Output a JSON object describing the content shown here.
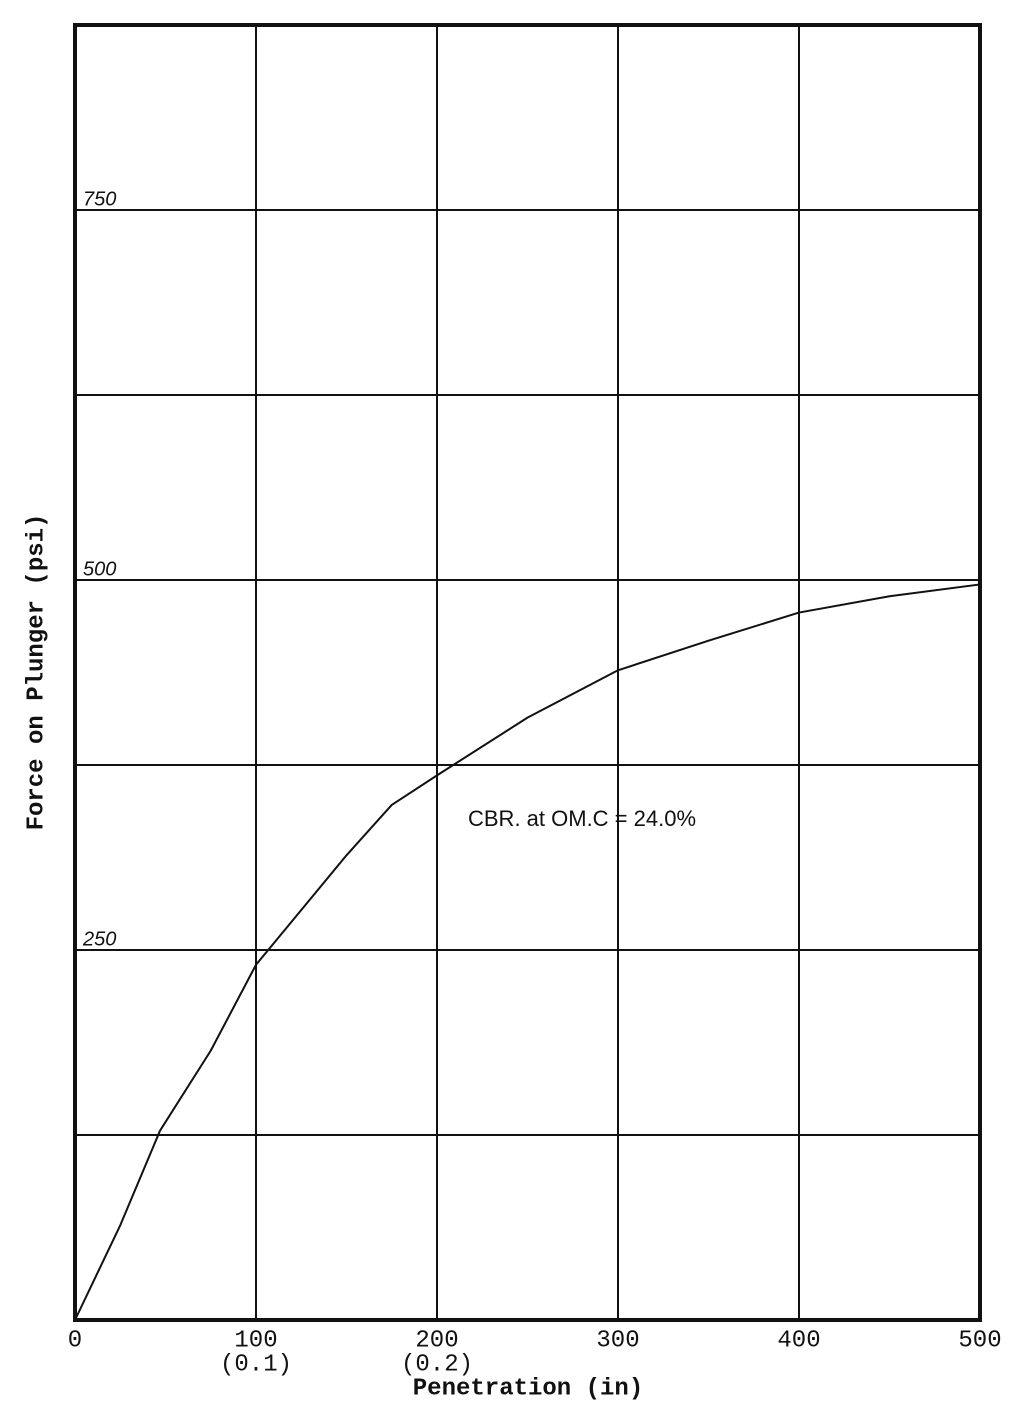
{
  "chart_data": {
    "type": "line",
    "x_label": "Penetration (in)",
    "y_label": "Force on Plunger (psi)",
    "annotation": "CBR. at OM.C = 24.0%",
    "x": [
      0,
      25,
      47,
      75,
      100,
      150,
      175,
      200,
      250,
      300,
      350,
      400,
      450,
      500
    ],
    "values": [
      0,
      64,
      128,
      182,
      240,
      314,
      348,
      368,
      407,
      439,
      459,
      478,
      489,
      497
    ],
    "color": "#111111",
    "xlim": [
      0,
      500
    ],
    "xticks": [
      0,
      {
        "value": 100,
        "label": "100",
        "sublabel": "(0.1)"
      },
      {
        "value": 200,
        "label": "200",
        "sublabel": "(0.2)"
      },
      300,
      400,
      500
    ],
    "ylim": [
      0,
      875
    ],
    "yticks": [
      250,
      500,
      750
    ],
    "yminor": [
      125,
      375,
      625
    ],
    "grid": true
  }
}
